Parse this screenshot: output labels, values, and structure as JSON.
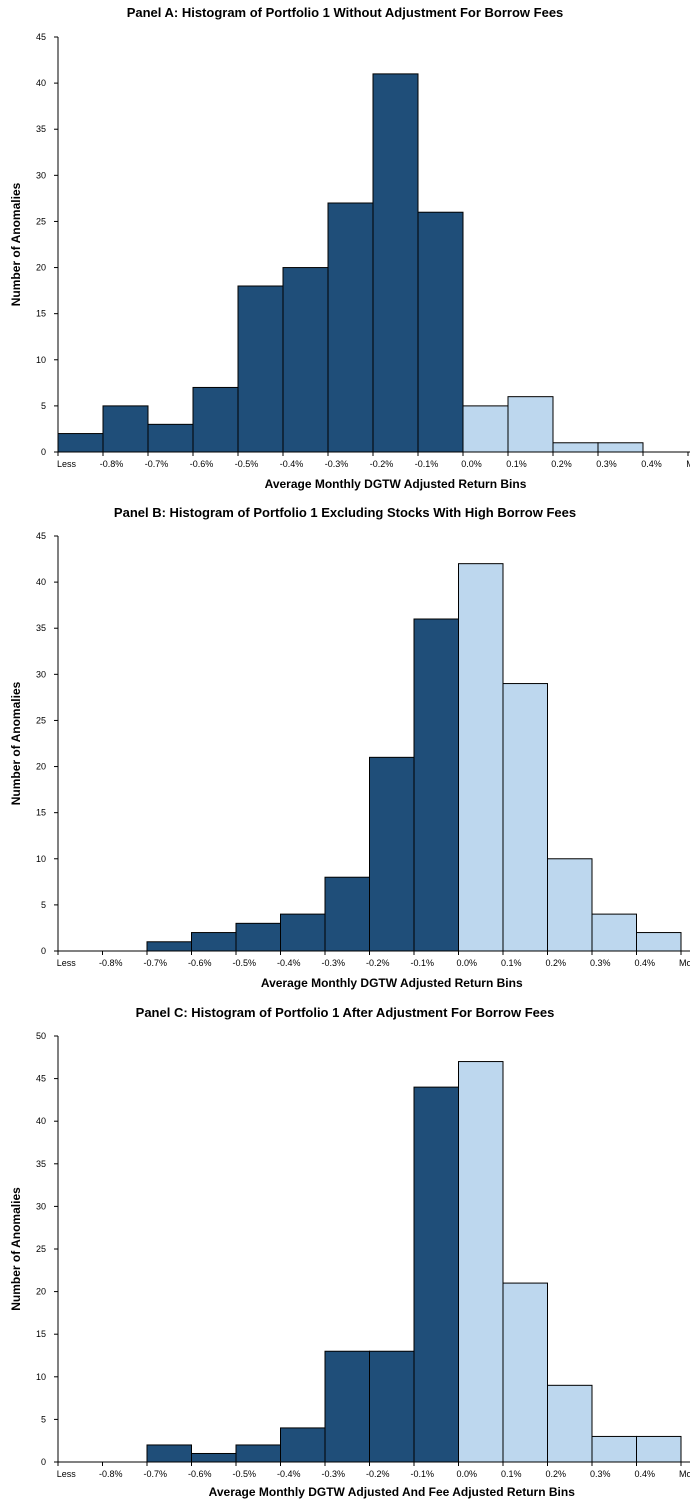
{
  "chart_data": [
    {
      "type": "bar",
      "title": "Panel A: Histogram of Portfolio 1 Without Adjustment For Borrow Fees",
      "xlabel": "Average Monthly DGTW Adjusted Return Bins",
      "ylabel": "Number of Anomalies",
      "categories": [
        "Less",
        "-0.8%",
        "-0.7%",
        "-0.6%",
        "-0.5%",
        "-0.4%",
        "-0.3%",
        "-0.2%",
        "-0.1%",
        "0.0%",
        "0.1%",
        "0.2%",
        "0.3%",
        "0.4%",
        "More"
      ],
      "values": [
        2,
        5,
        3,
        7,
        18,
        20,
        27,
        41,
        26,
        5,
        6,
        1,
        1,
        0,
        0
      ],
      "ylim": [
        0,
        45
      ],
      "yticks": [
        0,
        5,
        10,
        15,
        20,
        25,
        30,
        35,
        40,
        45
      ],
      "colors": {
        "negative": "#1f4e79",
        "positive": "#bdd7ee"
      },
      "first_positive_index": 9,
      "grid": false
    },
    {
      "type": "bar",
      "title": "Panel B: Histogram of Portfolio 1 Excluding Stocks With High Borrow Fees",
      "xlabel": "Average Monthly DGTW Adjusted Return Bins",
      "ylabel": "Number of Anomalies",
      "categories": [
        "Less",
        "-0.8%",
        "-0.7%",
        "-0.6%",
        "-0.5%",
        "-0.4%",
        "-0.3%",
        "-0.2%",
        "-0.1%",
        "0.0%",
        "0.1%",
        "0.2%",
        "0.3%",
        "0.4%",
        "More"
      ],
      "values": [
        0,
        0,
        1,
        2,
        3,
        4,
        8,
        21,
        36,
        42,
        29,
        10,
        4,
        2,
        0
      ],
      "ylim": [
        0,
        45
      ],
      "yticks": [
        0,
        5,
        10,
        15,
        20,
        25,
        30,
        35,
        40,
        45
      ],
      "colors": {
        "negative": "#1f4e79",
        "positive": "#bdd7ee"
      },
      "first_positive_index": 9,
      "grid": false
    },
    {
      "type": "bar",
      "title": "Panel C: Histogram of Portfolio 1 After Adjustment For Borrow Fees",
      "xlabel": "Average Monthly DGTW Adjusted And Fee Adjusted Return Bins",
      "ylabel": "Number of Anomalies",
      "categories": [
        "Less",
        "-0.8%",
        "-0.7%",
        "-0.6%",
        "-0.5%",
        "-0.4%",
        "-0.3%",
        "-0.2%",
        "-0.1%",
        "0.0%",
        "0.1%",
        "0.2%",
        "0.3%",
        "0.4%",
        "More"
      ],
      "values": [
        0,
        0,
        2,
        1,
        2,
        4,
        13,
        13,
        44,
        47,
        21,
        9,
        3,
        3,
        0
      ],
      "ylim": [
        0,
        50
      ],
      "yticks": [
        0,
        5,
        10,
        15,
        20,
        25,
        30,
        35,
        40,
        45,
        50
      ],
      "colors": {
        "negative": "#1f4e79",
        "positive": "#bdd7ee"
      },
      "first_positive_index": 9,
      "grid": false
    }
  ]
}
